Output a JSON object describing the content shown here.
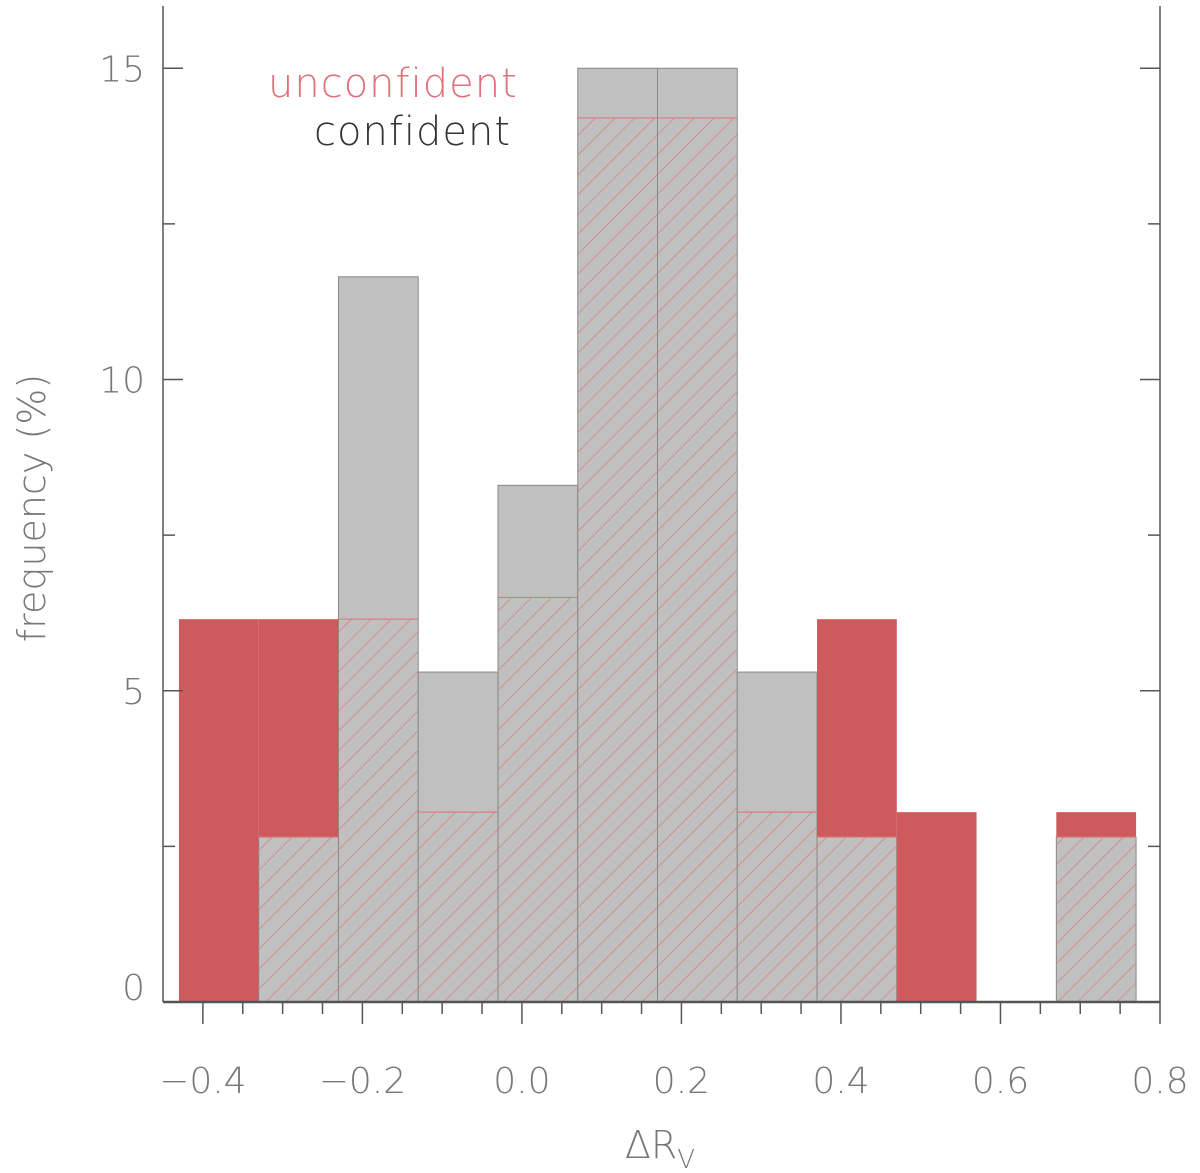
{
  "chart_data": {
    "type": "bar",
    "subtype": "overlaid-histogram",
    "xlabel": "ΔR",
    "xlabel_subscript": "V",
    "ylabel": "frequency (%)",
    "xlim": [
      -0.45,
      0.8
    ],
    "ylim": [
      0,
      16
    ],
    "bin_width": 0.1,
    "bin_centers": [
      -0.38,
      -0.28,
      -0.18,
      -0.08,
      0.02,
      0.12,
      0.22,
      0.32,
      0.42,
      0.52,
      0.62,
      0.72
    ],
    "series": [
      {
        "name": "unconfident",
        "style": "solid",
        "values": [
          6.15,
          6.15,
          6.15,
          5.3,
          8.3,
          14.2,
          14.2,
          5.3,
          6.15,
          3.05,
          0,
          3.05
        ]
      },
      {
        "name": "confident",
        "style": "hatched-gray",
        "values": [
          0,
          2.65,
          11.65,
          5.3,
          8.3,
          15.0,
          15.0,
          5.3,
          2.65,
          0,
          0,
          2.65
        ]
      },
      {
        "name": "hatch-top",
        "style": "hatch-extent",
        "values": [
          0,
          2.65,
          6.15,
          3.05,
          6.5,
          14.2,
          14.2,
          3.05,
          2.65,
          0,
          0,
          2.65
        ]
      }
    ],
    "x_ticks": [
      "−0.4",
      "−0.2",
      "0.0",
      "0.2",
      "0.4",
      "0.6",
      "0.8"
    ],
    "x_tick_values": [
      -0.4,
      -0.2,
      0.0,
      0.2,
      0.4,
      0.6,
      0.8
    ],
    "y_ticks": [
      "0",
      "5",
      "10",
      "15"
    ],
    "y_tick_values": [
      0,
      5,
      10,
      15
    ],
    "legend": [
      {
        "label": "unconfident",
        "color": "#e0707a"
      },
      {
        "label": "confident",
        "color": "#333333"
      }
    ],
    "legend_position": "top-left",
    "colors": {
      "unconfident_fill": "#cd5a5c",
      "confident_fill": "#c0c0c0",
      "hatch": "#e07070",
      "edge": "#888888",
      "axis": "#555555"
    }
  }
}
